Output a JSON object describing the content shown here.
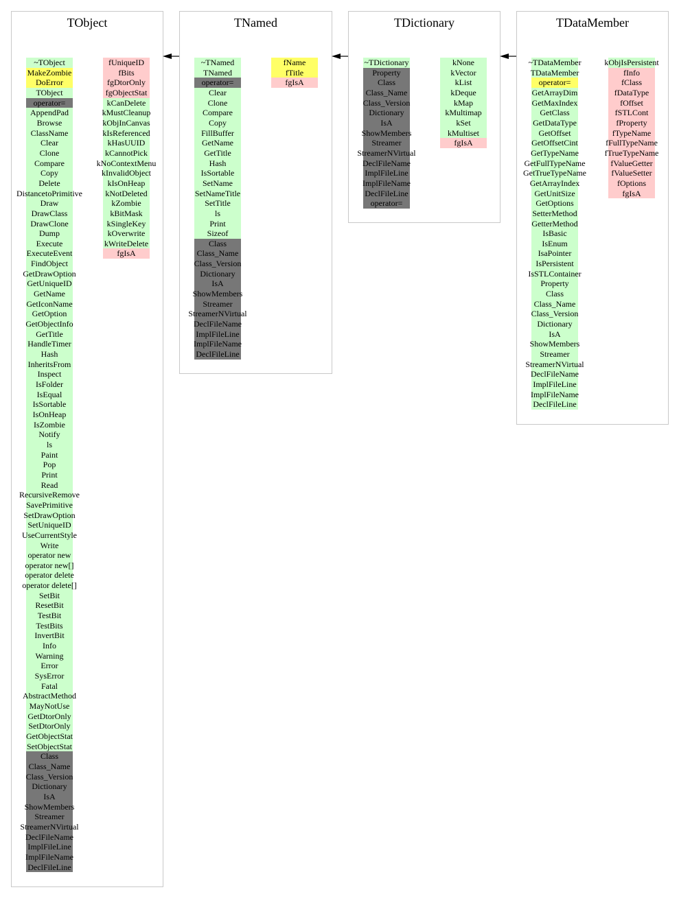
{
  "colors": {
    "public": "#ccffcc",
    "protected": "#ffff66",
    "inherited": "#777777",
    "data_member": "#ffcccc"
  },
  "classes": [
    {
      "name": "TObject",
      "methods": [
        [
          "~TObject",
          "g"
        ],
        [
          "MakeZombie",
          "y"
        ],
        [
          "DoError",
          "y"
        ],
        [
          "TObject",
          "g"
        ],
        [
          "operator=",
          "d"
        ],
        [
          "AppendPad",
          "g"
        ],
        [
          "Browse",
          "g"
        ],
        [
          "ClassName",
          "g"
        ],
        [
          "Clear",
          "g"
        ],
        [
          "Clone",
          "g"
        ],
        [
          "Compare",
          "g"
        ],
        [
          "Copy",
          "g"
        ],
        [
          "Delete",
          "g"
        ],
        [
          "DistancetoPrimitive",
          "g"
        ],
        [
          "Draw",
          "g"
        ],
        [
          "DrawClass",
          "g"
        ],
        [
          "DrawClone",
          "g"
        ],
        [
          "Dump",
          "g"
        ],
        [
          "Execute",
          "g"
        ],
        [
          "ExecuteEvent",
          "g"
        ],
        [
          "FindObject",
          "g"
        ],
        [
          "GetDrawOption",
          "g"
        ],
        [
          "GetUniqueID",
          "g"
        ],
        [
          "GetName",
          "g"
        ],
        [
          "GetIconName",
          "g"
        ],
        [
          "GetOption",
          "g"
        ],
        [
          "GetObjectInfo",
          "g"
        ],
        [
          "GetTitle",
          "g"
        ],
        [
          "HandleTimer",
          "g"
        ],
        [
          "Hash",
          "g"
        ],
        [
          "InheritsFrom",
          "g"
        ],
        [
          "Inspect",
          "g"
        ],
        [
          "IsFolder",
          "g"
        ],
        [
          "IsEqual",
          "g"
        ],
        [
          "IsSortable",
          "g"
        ],
        [
          "IsOnHeap",
          "g"
        ],
        [
          "IsZombie",
          "g"
        ],
        [
          "Notify",
          "g"
        ],
        [
          "ls",
          "g"
        ],
        [
          "Paint",
          "g"
        ],
        [
          "Pop",
          "g"
        ],
        [
          "Print",
          "g"
        ],
        [
          "Read",
          "g"
        ],
        [
          "RecursiveRemove",
          "g"
        ],
        [
          "SavePrimitive",
          "g"
        ],
        [
          "SetDrawOption",
          "g"
        ],
        [
          "SetUniqueID",
          "g"
        ],
        [
          "UseCurrentStyle",
          "g"
        ],
        [
          "Write",
          "g"
        ],
        [
          "operator new",
          "g"
        ],
        [
          "operator new[]",
          "g"
        ],
        [
          "operator delete",
          "g"
        ],
        [
          "operator delete[]",
          "g"
        ],
        [
          "SetBit",
          "g"
        ],
        [
          "ResetBit",
          "g"
        ],
        [
          "TestBit",
          "g"
        ],
        [
          "TestBits",
          "g"
        ],
        [
          "InvertBit",
          "g"
        ],
        [
          "Info",
          "g"
        ],
        [
          "Warning",
          "g"
        ],
        [
          "Error",
          "g"
        ],
        [
          "SysError",
          "g"
        ],
        [
          "Fatal",
          "g"
        ],
        [
          "AbstractMethod",
          "g"
        ],
        [
          "MayNotUse",
          "g"
        ],
        [
          "GetDtorOnly",
          "g"
        ],
        [
          "SetDtorOnly",
          "g"
        ],
        [
          "GetObjectStat",
          "g"
        ],
        [
          "SetObjectStat",
          "g"
        ],
        [
          "Class",
          "d"
        ],
        [
          "Class_Name",
          "d"
        ],
        [
          "Class_Version",
          "d"
        ],
        [
          "Dictionary",
          "d"
        ],
        [
          "IsA",
          "d"
        ],
        [
          "ShowMembers",
          "d"
        ],
        [
          "Streamer",
          "d"
        ],
        [
          "StreamerNVirtual",
          "d"
        ],
        [
          "DeclFileName",
          "d"
        ],
        [
          "ImplFileLine",
          "d"
        ],
        [
          "ImplFileName",
          "d"
        ],
        [
          "DeclFileLine",
          "d"
        ]
      ],
      "members": [
        [
          "fUniqueID",
          "p"
        ],
        [
          "fBits",
          "p"
        ],
        [
          "fgDtorOnly",
          "p"
        ],
        [
          "fgObjectStat",
          "p"
        ],
        [
          "kCanDelete",
          "g"
        ],
        [
          "kMustCleanup",
          "g"
        ],
        [
          "kObjInCanvas",
          "g"
        ],
        [
          "kIsReferenced",
          "g"
        ],
        [
          "kHasUUID",
          "g"
        ],
        [
          "kCannotPick",
          "g"
        ],
        [
          "kNoContextMenu",
          "g"
        ],
        [
          "kInvalidObject",
          "g"
        ],
        [
          "kIsOnHeap",
          "g"
        ],
        [
          "kNotDeleted",
          "g"
        ],
        [
          "kZombie",
          "g"
        ],
        [
          "kBitMask",
          "g"
        ],
        [
          "kSingleKey",
          "g"
        ],
        [
          "kOverwrite",
          "g"
        ],
        [
          "kWriteDelete",
          "g"
        ],
        [
          "fgIsA",
          "p"
        ]
      ]
    },
    {
      "name": "TNamed",
      "methods": [
        [
          "~TNamed",
          "g"
        ],
        [
          "TNamed",
          "g"
        ],
        [
          "operator=",
          "d"
        ],
        [
          "Clear",
          "g"
        ],
        [
          "Clone",
          "g"
        ],
        [
          "Compare",
          "g"
        ],
        [
          "Copy",
          "g"
        ],
        [
          "FillBuffer",
          "g"
        ],
        [
          "GetName",
          "g"
        ],
        [
          "GetTitle",
          "g"
        ],
        [
          "Hash",
          "g"
        ],
        [
          "IsSortable",
          "g"
        ],
        [
          "SetName",
          "g"
        ],
        [
          "SetNameTitle",
          "g"
        ],
        [
          "SetTitle",
          "g"
        ],
        [
          "ls",
          "g"
        ],
        [
          "Print",
          "g"
        ],
        [
          "Sizeof",
          "g"
        ],
        [
          "Class",
          "d"
        ],
        [
          "Class_Name",
          "d"
        ],
        [
          "Class_Version",
          "d"
        ],
        [
          "Dictionary",
          "d"
        ],
        [
          "IsA",
          "d"
        ],
        [
          "ShowMembers",
          "d"
        ],
        [
          "Streamer",
          "d"
        ],
        [
          "StreamerNVirtual",
          "d"
        ],
        [
          "DeclFileName",
          "d"
        ],
        [
          "ImplFileLine",
          "d"
        ],
        [
          "ImplFileName",
          "d"
        ],
        [
          "DeclFileLine",
          "d"
        ]
      ],
      "members": [
        [
          "fName",
          "y"
        ],
        [
          "fTitle",
          "y"
        ],
        [
          "fgIsA",
          "p"
        ]
      ]
    },
    {
      "name": "TDictionary",
      "methods": [
        [
          "~TDictionary",
          "g"
        ],
        [
          "Property",
          "d"
        ],
        [
          "Class",
          "d"
        ],
        [
          "Class_Name",
          "d"
        ],
        [
          "Class_Version",
          "d"
        ],
        [
          "Dictionary",
          "d"
        ],
        [
          "IsA",
          "d"
        ],
        [
          "ShowMembers",
          "d"
        ],
        [
          "Streamer",
          "d"
        ],
        [
          "StreamerNVirtual",
          "d"
        ],
        [
          "DeclFileName",
          "d"
        ],
        [
          "ImplFileLine",
          "d"
        ],
        [
          "ImplFileName",
          "d"
        ],
        [
          "DeclFileLine",
          "d"
        ],
        [
          "operator=",
          "d"
        ]
      ],
      "members": [
        [
          "kNone",
          "g"
        ],
        [
          "kVector",
          "g"
        ],
        [
          "kList",
          "g"
        ],
        [
          "kDeque",
          "g"
        ],
        [
          "kMap",
          "g"
        ],
        [
          "kMultimap",
          "g"
        ],
        [
          "kSet",
          "g"
        ],
        [
          "kMultiset",
          "g"
        ],
        [
          "fgIsA",
          "p"
        ]
      ]
    },
    {
      "name": "TDataMember",
      "methods": [
        [
          "~TDataMember",
          "g"
        ],
        [
          "TDataMember",
          "g"
        ],
        [
          "operator=",
          "y"
        ],
        [
          "GetArrayDim",
          "g"
        ],
        [
          "GetMaxIndex",
          "g"
        ],
        [
          "GetClass",
          "g"
        ],
        [
          "GetDataType",
          "g"
        ],
        [
          "GetOffset",
          "g"
        ],
        [
          "GetOffsetCint",
          "g"
        ],
        [
          "GetTypeName",
          "g"
        ],
        [
          "GetFullTypeName",
          "g"
        ],
        [
          "GetTrueTypeName",
          "g"
        ],
        [
          "GetArrayIndex",
          "g"
        ],
        [
          "GetUnitSize",
          "g"
        ],
        [
          "GetOptions",
          "g"
        ],
        [
          "SetterMethod",
          "g"
        ],
        [
          "GetterMethod",
          "g"
        ],
        [
          "IsBasic",
          "g"
        ],
        [
          "IsEnum",
          "g"
        ],
        [
          "IsaPointer",
          "g"
        ],
        [
          "IsPersistent",
          "g"
        ],
        [
          "IsSTLContainer",
          "g"
        ],
        [
          "Property",
          "g"
        ],
        [
          "Class",
          "g"
        ],
        [
          "Class_Name",
          "g"
        ],
        [
          "Class_Version",
          "g"
        ],
        [
          "Dictionary",
          "g"
        ],
        [
          "IsA",
          "g"
        ],
        [
          "ShowMembers",
          "g"
        ],
        [
          "Streamer",
          "g"
        ],
        [
          "StreamerNVirtual",
          "g"
        ],
        [
          "DeclFileName",
          "g"
        ],
        [
          "ImplFileLine",
          "g"
        ],
        [
          "ImplFileName",
          "g"
        ],
        [
          "DeclFileLine",
          "g"
        ]
      ],
      "members": [
        [
          "kObjIsPersistent",
          "g"
        ],
        [
          "fInfo",
          "p"
        ],
        [
          "fClass",
          "p"
        ],
        [
          "fDataType",
          "p"
        ],
        [
          "fOffset",
          "p"
        ],
        [
          "fSTLCont",
          "p"
        ],
        [
          "fProperty",
          "p"
        ],
        [
          "fTypeName",
          "p"
        ],
        [
          "fFullTypeName",
          "p"
        ],
        [
          "fTrueTypeName",
          "p"
        ],
        [
          "fValueGetter",
          "p"
        ],
        [
          "fValueSetter",
          "p"
        ],
        [
          "fOptions",
          "p"
        ],
        [
          "fgIsA",
          "p"
        ]
      ]
    }
  ]
}
